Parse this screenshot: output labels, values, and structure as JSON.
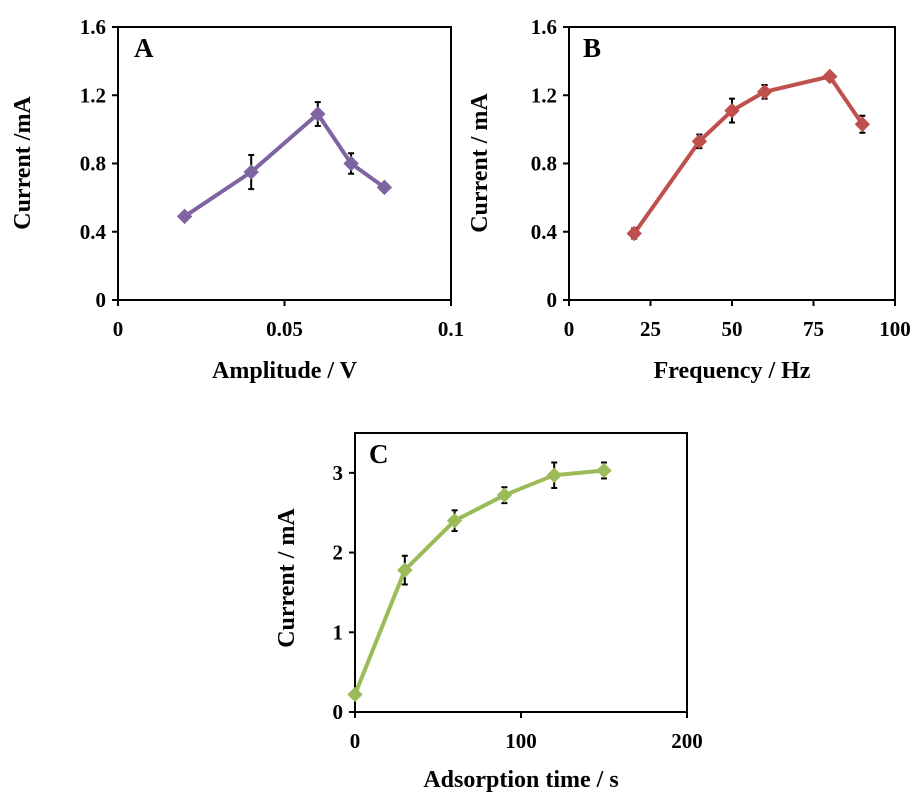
{
  "chart_data": [
    {
      "panel": "A",
      "type": "line",
      "xlabel": "Amplitude / V",
      "ylabel": "Current /mA",
      "xlim": [
        0,
        0.1
      ],
      "ylim": [
        0,
        1.6
      ],
      "xticks": [
        0,
        0.05,
        0.1
      ],
      "xtick_labels": [
        "0",
        "0.05",
        "0.1"
      ],
      "yticks": [
        0,
        0.4,
        0.8,
        1.2,
        1.6
      ],
      "ytick_labels": [
        "0",
        "0.4",
        "0.8",
        "1.2",
        "1.6"
      ],
      "grid": false,
      "color": "#8064A2",
      "series": [
        {
          "x": [
            0.02,
            0.04,
            0.06,
            0.07,
            0.08
          ],
          "y": [
            0.49,
            0.75,
            1.09,
            0.8,
            0.66
          ],
          "err": [
            0,
            0.1,
            0.07,
            0.06,
            0
          ]
        }
      ]
    },
    {
      "panel": "B",
      "type": "line",
      "xlabel": "Frequency / Hz",
      "ylabel": "Current / mA",
      "xlim": [
        0,
        100
      ],
      "ylim": [
        0,
        1.6
      ],
      "xticks": [
        0,
        25,
        50,
        75,
        100
      ],
      "xtick_labels": [
        "0",
        "25",
        "50",
        "75",
        "100"
      ],
      "yticks": [
        0,
        0.4,
        0.8,
        1.2,
        1.6
      ],
      "ytick_labels": [
        "0",
        "0.4",
        "0.8",
        "1.2",
        "1.6"
      ],
      "grid": false,
      "color": "#C0504D",
      "series": [
        {
          "x": [
            20,
            40,
            50,
            60,
            80,
            90
          ],
          "y": [
            0.39,
            0.93,
            1.11,
            1.22,
            1.31,
            1.03
          ],
          "err": [
            0.03,
            0.04,
            0.07,
            0.04,
            0.02,
            0.05
          ]
        }
      ]
    },
    {
      "panel": "C",
      "type": "line",
      "xlabel": "Adsorption time / s",
      "ylabel": "Current / mA",
      "xlim": [
        0,
        200
      ],
      "ylim": [
        0,
        3.5
      ],
      "xticks": [
        0,
        100,
        200
      ],
      "xtick_labels": [
        "0",
        "100",
        "200"
      ],
      "yticks": [
        0,
        1,
        2,
        3
      ],
      "ytick_labels": [
        "0",
        "1",
        "2",
        "3"
      ],
      "grid": false,
      "color": "#9BBB59",
      "series": [
        {
          "x": [
            0,
            30,
            60,
            90,
            120,
            150
          ],
          "y": [
            0.22,
            1.78,
            2.4,
            2.72,
            2.97,
            3.03
          ],
          "err": [
            0.04,
            0.18,
            0.13,
            0.1,
            0.16,
            0.1
          ]
        }
      ]
    }
  ]
}
